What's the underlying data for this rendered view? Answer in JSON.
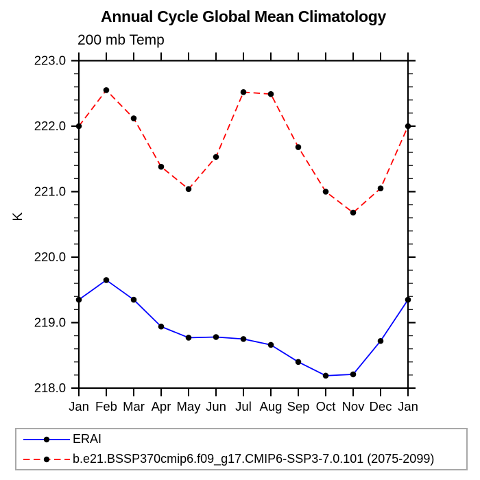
{
  "chart_data": {
    "type": "line",
    "title": "Annual Cycle Global Mean Climatology",
    "subtitle": "200 mb Temp",
    "ylabel": "K",
    "x_tick_labels": [
      "Jan",
      "Feb",
      "Mar",
      "Apr",
      "May",
      "Jun",
      "Jul",
      "Aug",
      "Sep",
      "Oct",
      "Nov",
      "Dec",
      "Jan"
    ],
    "y_tick_labels": [
      "223.0",
      "222.0",
      "221.0",
      "220.0",
      "219.0",
      "218.0"
    ],
    "ylim": [
      218.0,
      223.0
    ],
    "y_major_step": 1.0,
    "y_minor_step": 0.2,
    "grid": false,
    "legend_position": "bottom",
    "frame_color": "#000000",
    "series": [
      {
        "name": "ERAI",
        "slug": "erai",
        "color": "#0000ff",
        "line_style": "solid",
        "marker": "filled-circle",
        "marker_color": "#000000",
        "values": [
          219.35,
          219.65,
          219.35,
          218.94,
          218.77,
          218.78,
          218.75,
          218.66,
          218.4,
          218.19,
          218.21,
          218.72,
          219.35
        ]
      },
      {
        "name": "b.e21.BSSP370cmip6.f09_g17.CMIP6-SSP3-7.0.101 (2075-2099)",
        "slug": "model",
        "color": "#ff0000",
        "line_style": "dashed",
        "marker": "filled-circle",
        "marker_color": "#000000",
        "values": [
          222.0,
          222.55,
          222.12,
          221.38,
          221.04,
          221.53,
          222.52,
          222.49,
          221.68,
          221.0,
          220.68,
          221.05,
          222.0
        ]
      }
    ]
  }
}
